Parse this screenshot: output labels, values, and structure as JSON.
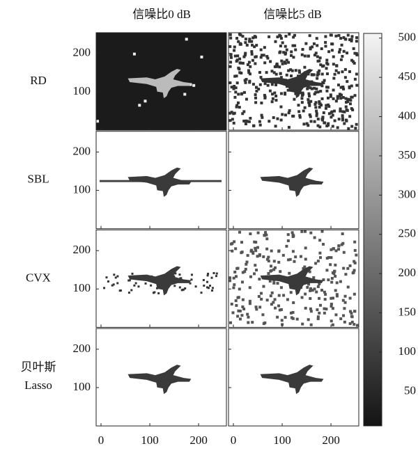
{
  "chart_data": {
    "type": "image-grid",
    "column_titles": [
      "信噪比0 dB",
      "信噪比5 dB"
    ],
    "row_labels": [
      [
        "RD"
      ],
      [
        "SBL"
      ],
      [
        "CVX"
      ],
      [
        "贝叶斯",
        "Lasso"
      ]
    ],
    "xlim": [
      -10,
      257
    ],
    "xticks": [
      0,
      100,
      200
    ],
    "ylim": [
      0,
      254
    ],
    "yticks": [
      100,
      200
    ],
    "colorbar": {
      "lim": [
        6,
        506
      ],
      "ticks": [
        50,
        100,
        150,
        200,
        250,
        300,
        350,
        400,
        450,
        500
      ],
      "colors": [
        "#141414",
        "#f4f4f4"
      ]
    }
  }
}
